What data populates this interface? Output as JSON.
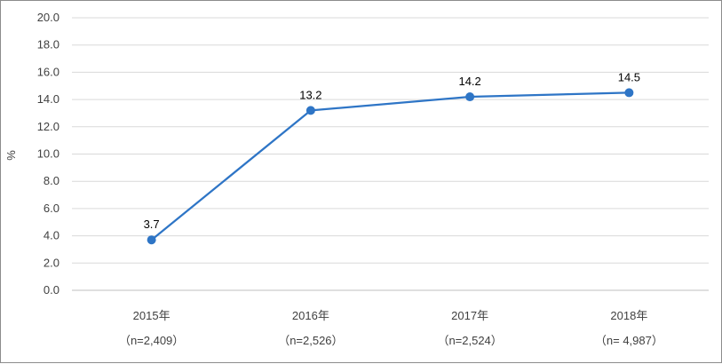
{
  "chart_data": {
    "type": "line",
    "title": "",
    "xlabel": "",
    "ylabel": "%",
    "ylim": [
      0,
      20
    ],
    "ytick_step": 2,
    "grid": true,
    "legend": "none",
    "categories": [
      "2015年",
      "2016年",
      "2017年",
      "2018年"
    ],
    "category_notes": [
      "（n=2,409）",
      "（n=2,526）",
      "（n=2,524）",
      "（n= 4,987）"
    ],
    "series": [
      {
        "values": [
          3.7,
          13.2,
          14.2,
          14.5
        ],
        "data_labels": [
          "3.7",
          "13.2",
          "14.2",
          "14.5"
        ]
      }
    ],
    "colors": {
      "line": "#2e75c6",
      "grid": "#d9d9d9",
      "axis": "#bfbfbf"
    }
  }
}
